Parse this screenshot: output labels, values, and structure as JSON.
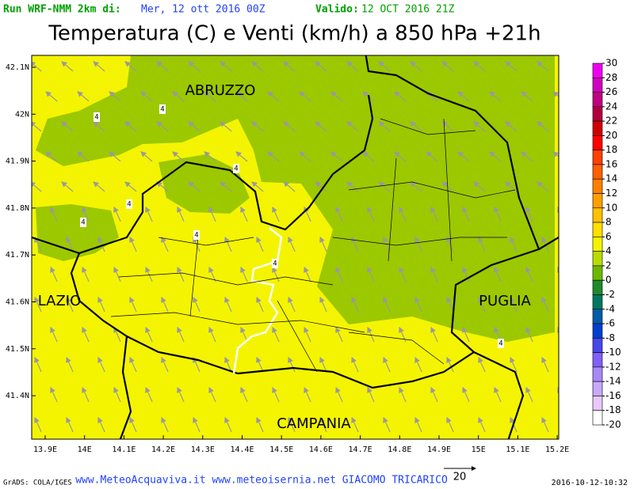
{
  "header": {
    "run_label": "Run WRF-NMM 2km di:",
    "run_date": "Mer, 12 ott 2016 00Z",
    "valid_label": "Valido:",
    "valid_date": "12 OCT 2016 21Z"
  },
  "title": "Temperatura (C) e Venti (km/h) a 850 hPa +21h",
  "map": {
    "lat_ticks": [
      {
        "value": 42.1,
        "label": "42.1N"
      },
      {
        "value": 42,
        "label": "42N"
      },
      {
        "value": 41.9,
        "label": "41.9N"
      },
      {
        "value": 41.8,
        "label": "41.8N"
      },
      {
        "value": 41.7,
        "label": "41.7N"
      },
      {
        "value": 41.6,
        "label": "41.6N"
      },
      {
        "value": 41.5,
        "label": "41.5N"
      },
      {
        "value": 41.4,
        "label": "41.4N"
      }
    ],
    "lon_ticks": [
      {
        "value": 13.9,
        "label": "13.9E"
      },
      {
        "value": 14,
        "label": "14E"
      },
      {
        "value": 14.1,
        "label": "14.1E"
      },
      {
        "value": 14.2,
        "label": "14.2E"
      },
      {
        "value": 14.3,
        "label": "14.3E"
      },
      {
        "value": 14.4,
        "label": "14.4E"
      },
      {
        "value": 14.5,
        "label": "14.5E"
      },
      {
        "value": 14.6,
        "label": "14.6E"
      },
      {
        "value": 14.7,
        "label": "14.7E"
      },
      {
        "value": 14.8,
        "label": "14.8E"
      },
      {
        "value": 14.9,
        "label": "14.9E"
      },
      {
        "value": 15,
        "label": "15E"
      },
      {
        "value": 15.1,
        "label": "15.1E"
      },
      {
        "value": 15.2,
        "label": "15.2E"
      }
    ],
    "region_labels": [
      "ABRUZZO",
      "LAZIO",
      "PUGLIA",
      "CAMPANIA"
    ],
    "contour_labels": [
      4,
      4,
      4,
      4,
      4,
      4,
      4,
      4
    ]
  },
  "colorbar": {
    "ticks": [
      30,
      28,
      26,
      24,
      22,
      20,
      18,
      16,
      14,
      12,
      10,
      8,
      6,
      4,
      2,
      0,
      -2,
      -4,
      -6,
      -8,
      -10,
      -12,
      -14,
      -16,
      -18,
      -20
    ],
    "colors": [
      "#f000f0",
      "#d000c0",
      "#c00080",
      "#b00040",
      "#d00000",
      "#ff0000",
      "#ff4000",
      "#ff6000",
      "#ff8000",
      "#ffa000",
      "#ffc000",
      "#ffe000",
      "#f4f400",
      "#b8dc00",
      "#6cb800",
      "#208a2c",
      "#007860",
      "#005ca8",
      "#0040d0",
      "#4848e8",
      "#8060f8",
      "#a888f8",
      "#c8a8f8",
      "#e8c8f8",
      "#ffffff"
    ]
  },
  "footer": {
    "credit": "GrADS: COLA/IGES",
    "sites": "www.MeteoAcquaviva.it www.meteoisernia.net GIACOMO TRICARICO",
    "wind_reference": 20,
    "timestamp": "2016-10-12-10:32"
  }
}
